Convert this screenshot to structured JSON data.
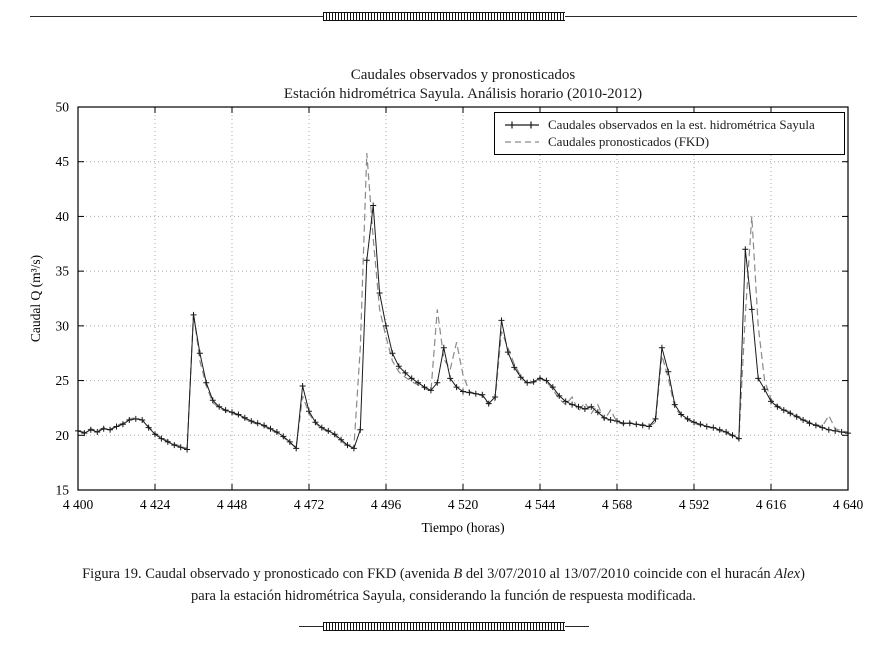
{
  "page": {
    "kind": "journal-figure"
  },
  "caption": {
    "line1_segments": [
      {
        "text": "Figura 19. Caudal observado y pronosticado con FKD (avenida ",
        "italic": false
      },
      {
        "text": "B",
        "italic": true
      },
      {
        "text": " del 3/07/2010 al 13/07/2010 coincide con el huracán ",
        "italic": false
      },
      {
        "text": "Alex",
        "italic": true
      },
      {
        "text": ")",
        "italic": false
      }
    ],
    "line2": "para la estación hidrométrica Sayula, considerando la función de respuesta modificada."
  },
  "chart_data": {
    "type": "line",
    "title": "Caudales observados y pronosticados",
    "subtitle": "Estación hidrométrica Sayula. Análisis horario (2010-2012)",
    "xlabel": "Tiempo (horas)",
    "ylabel": "Caudal Q (m³/s)",
    "xlim": [
      4400,
      4640
    ],
    "ylim": [
      15,
      50
    ],
    "grid": true,
    "legend_position": "top-right-inside",
    "xtick_values": [
      4400,
      4424,
      4448,
      4472,
      4496,
      4520,
      4544,
      4568,
      4592,
      4616,
      4640
    ],
    "xtick_labels": [
      "4 400",
      "4 424",
      "4 448",
      "4 472",
      "4 496",
      "4 520",
      "4 544",
      "4 568",
      "4 592",
      "4 616",
      "4 640"
    ],
    "ytick_values": [
      15,
      20,
      25,
      30,
      35,
      40,
      45,
      50
    ],
    "ytick_labels": [
      "15",
      "20",
      "25",
      "30",
      "35",
      "40",
      "45",
      "50"
    ],
    "colors": {
      "observed": "#1a1a1a",
      "forecast": "#8a8a8a",
      "grid": "#a8a8a8"
    },
    "x_start": 4400,
    "x_step": 2,
    "series": [
      {
        "name": "Caudales observados en la est. hidrométrica Sayula",
        "style": "solid-plus-markers",
        "values": [
          20.4,
          20.2,
          20.5,
          20.3,
          20.6,
          20.5,
          20.8,
          21.0,
          21.4,
          21.5,
          21.4,
          20.7,
          20.1,
          19.7,
          19.4,
          19.1,
          18.9,
          18.7,
          31.0,
          27.5,
          24.8,
          23.2,
          22.6,
          22.3,
          22.1,
          21.9,
          21.6,
          21.3,
          21.1,
          20.9,
          20.6,
          20.3,
          19.9,
          19.4,
          18.8,
          24.5,
          22.2,
          21.2,
          20.7,
          20.4,
          20.1,
          19.6,
          19.1,
          18.8,
          20.5,
          36.0,
          41.0,
          33.0,
          30.0,
          27.5,
          26.3,
          25.7,
          25.2,
          24.8,
          24.4,
          24.1,
          24.8,
          28.0,
          25.2,
          24.4,
          24.0,
          23.9,
          23.8,
          23.7,
          22.9,
          23.5,
          30.5,
          27.6,
          26.2,
          25.3,
          24.8,
          24.9,
          25.2,
          25.0,
          24.4,
          23.6,
          23.1,
          22.8,
          22.6,
          22.4,
          22.6,
          22.1,
          21.6,
          21.4,
          21.3,
          21.1,
          21.1,
          21.0,
          20.9,
          20.8,
          21.5,
          28.0,
          25.8,
          22.8,
          21.9,
          21.5,
          21.2,
          21.0,
          20.8,
          20.7,
          20.5,
          20.3,
          20.0,
          19.7,
          37.0,
          31.5,
          25.2,
          24.2,
          23.1,
          22.6,
          22.3,
          22.0,
          21.7,
          21.4,
          21.1,
          20.9,
          20.7,
          20.5,
          20.4,
          20.3,
          20.2
        ]
      },
      {
        "name": "Caudales pronosticados (FKD)",
        "style": "dashed",
        "values": [
          20.4,
          20.3,
          20.6,
          20.4,
          20.7,
          20.5,
          20.9,
          21.1,
          21.5,
          21.6,
          21.4,
          20.8,
          20.2,
          19.8,
          19.5,
          19.2,
          19.0,
          18.8,
          31.2,
          26.8,
          24.5,
          23.0,
          22.5,
          22.2,
          22.0,
          21.8,
          21.5,
          21.2,
          21.0,
          20.8,
          20.5,
          20.2,
          19.8,
          19.3,
          18.9,
          23.6,
          22.0,
          21.1,
          20.6,
          20.3,
          20.0,
          19.5,
          19.0,
          18.9,
          28.0,
          45.8,
          38.0,
          31.5,
          29.0,
          26.8,
          25.8,
          25.3,
          24.9,
          24.6,
          24.3,
          24.0,
          31.5,
          27.0,
          26.0,
          28.5,
          25.5,
          24.0,
          23.8,
          23.6,
          22.8,
          23.2,
          29.5,
          28.0,
          26.5,
          25.4,
          24.7,
          24.8,
          25.3,
          24.9,
          24.2,
          23.3,
          22.8,
          23.5,
          22.2,
          23.0,
          22.0,
          22.8,
          21.4,
          22.3,
          21.2,
          21.0,
          21.2,
          20.9,
          21.0,
          20.8,
          21.2,
          27.3,
          25.2,
          22.5,
          21.8,
          21.4,
          21.1,
          20.9,
          20.8,
          20.6,
          20.4,
          20.2,
          19.9,
          19.6,
          31.0,
          40.0,
          30.0,
          25.0,
          23.3,
          22.7,
          22.4,
          22.1,
          21.8,
          21.5,
          21.2,
          21.0,
          20.8,
          21.8,
          20.6,
          20.4,
          20.3
        ]
      }
    ]
  }
}
